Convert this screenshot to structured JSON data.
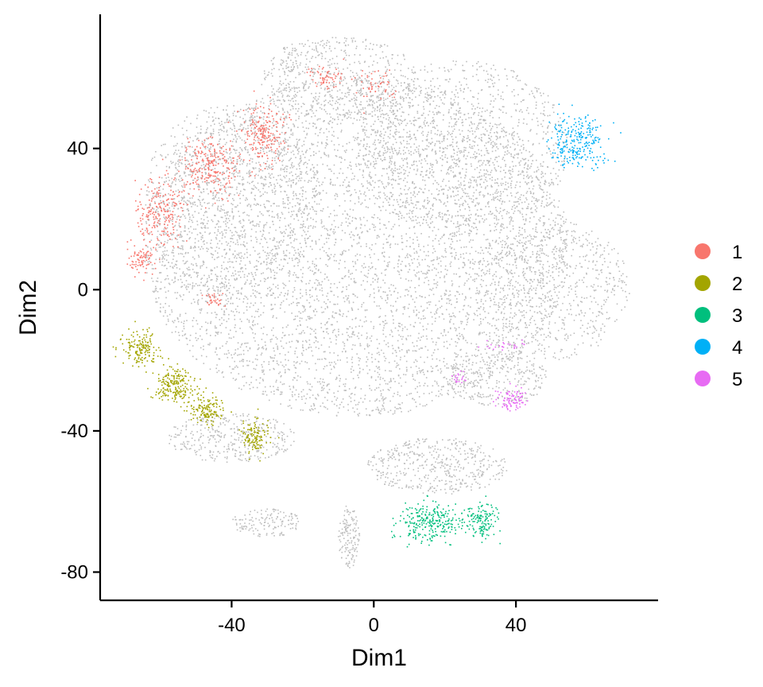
{
  "chart_data": {
    "type": "scatter",
    "xlabel": "Dim1",
    "ylabel": "Dim2",
    "xlim": [
      -77,
      80
    ],
    "ylim": [
      -88,
      78
    ],
    "x_ticks": [
      -40,
      0,
      40
    ],
    "y_ticks": [
      40,
      0,
      -40,
      -80
    ],
    "x_tick_labels": [
      "-40",
      "0",
      "40"
    ],
    "y_tick_labels": [
      "40",
      "0",
      "-40",
      "-80"
    ],
    "grid": false,
    "legend_placement": "right",
    "background_color": "#BEBEBE",
    "legend": [
      {
        "label": "1",
        "color": "#F8766D"
      },
      {
        "label": "2",
        "color": "#A3A500"
      },
      {
        "label": "3",
        "color": "#00BF7D"
      },
      {
        "label": "4",
        "color": "#00B0F6"
      },
      {
        "label": "5",
        "color": "#E76BF3"
      }
    ],
    "clusters": [
      {
        "label": "1",
        "color": "#F8766D",
        "regions": [
          {
            "cx": -60,
            "cy": 22,
            "rx": 7,
            "ry": 10,
            "n": 220
          },
          {
            "cx": -46,
            "cy": 35,
            "rx": 8,
            "ry": 8,
            "n": 240
          },
          {
            "cx": -31,
            "cy": 44,
            "rx": 6,
            "ry": 9,
            "n": 200
          },
          {
            "cx": -66,
            "cy": 8,
            "rx": 4,
            "ry": 4,
            "n": 80
          },
          {
            "cx": -13,
            "cy": 60,
            "rx": 6,
            "ry": 3,
            "n": 60
          },
          {
            "cx": 1,
            "cy": 58,
            "rx": 6,
            "ry": 5,
            "n": 50
          },
          {
            "cx": -45,
            "cy": -3,
            "rx": 3,
            "ry": 2,
            "n": 30
          }
        ]
      },
      {
        "label": "2",
        "color": "#A3A500",
        "regions": [
          {
            "cx": -66,
            "cy": -17,
            "rx": 5,
            "ry": 5,
            "n": 160
          },
          {
            "cx": -56,
            "cy": -27,
            "rx": 6,
            "ry": 5,
            "n": 200
          },
          {
            "cx": -47,
            "cy": -34,
            "rx": 5,
            "ry": 4,
            "n": 140
          },
          {
            "cx": -34,
            "cy": -42,
            "rx": 4,
            "ry": 5,
            "n": 120
          }
        ]
      },
      {
        "label": "3",
        "color": "#00BF7D",
        "regions": [
          {
            "cx": 16,
            "cy": -66,
            "rx": 9,
            "ry": 5,
            "n": 260
          },
          {
            "cx": 30,
            "cy": -65,
            "rx": 5,
            "ry": 5,
            "n": 140
          }
        ]
      },
      {
        "label": "4",
        "color": "#00B0F6",
        "regions": [
          {
            "cx": 57,
            "cy": 42,
            "rx": 8,
            "ry": 7,
            "n": 260
          }
        ]
      },
      {
        "label": "5",
        "color": "#E76BF3",
        "regions": [
          {
            "cx": 39,
            "cy": -31,
            "rx": 4,
            "ry": 3,
            "n": 90
          },
          {
            "cx": 24,
            "cy": -25,
            "rx": 2,
            "ry": 2,
            "n": 20
          },
          {
            "cx": 37,
            "cy": -16,
            "rx": 6,
            "ry": 1.5,
            "n": 25
          }
        ]
      }
    ],
    "background_regions": [
      {
        "cx": -5,
        "cy": 12,
        "rx": 60,
        "ry": 48,
        "n": 5200
      },
      {
        "cx": 25,
        "cy": 40,
        "rx": 30,
        "ry": 25,
        "n": 1100
      },
      {
        "cx": -40,
        "cy": 25,
        "rx": 25,
        "ry": 28,
        "n": 900
      },
      {
        "cx": 50,
        "cy": 0,
        "rx": 22,
        "ry": 20,
        "n": 700
      },
      {
        "cx": -10,
        "cy": 60,
        "rx": 22,
        "ry": 12,
        "n": 500
      },
      {
        "cx": -40,
        "cy": -42,
        "rx": 18,
        "ry": 7,
        "n": 350
      },
      {
        "cx": 18,
        "cy": -50,
        "rx": 20,
        "ry": 8,
        "n": 450
      },
      {
        "cx": -30,
        "cy": -66,
        "rx": 10,
        "ry": 4,
        "n": 140
      },
      {
        "cx": -7,
        "cy": -70,
        "rx": 3,
        "ry": 9,
        "n": 140
      },
      {
        "cx": 35,
        "cy": -25,
        "rx": 14,
        "ry": 8,
        "n": 280
      },
      {
        "cx": -24,
        "cy": 65,
        "rx": 3,
        "ry": 4,
        "n": 30
      }
    ]
  }
}
